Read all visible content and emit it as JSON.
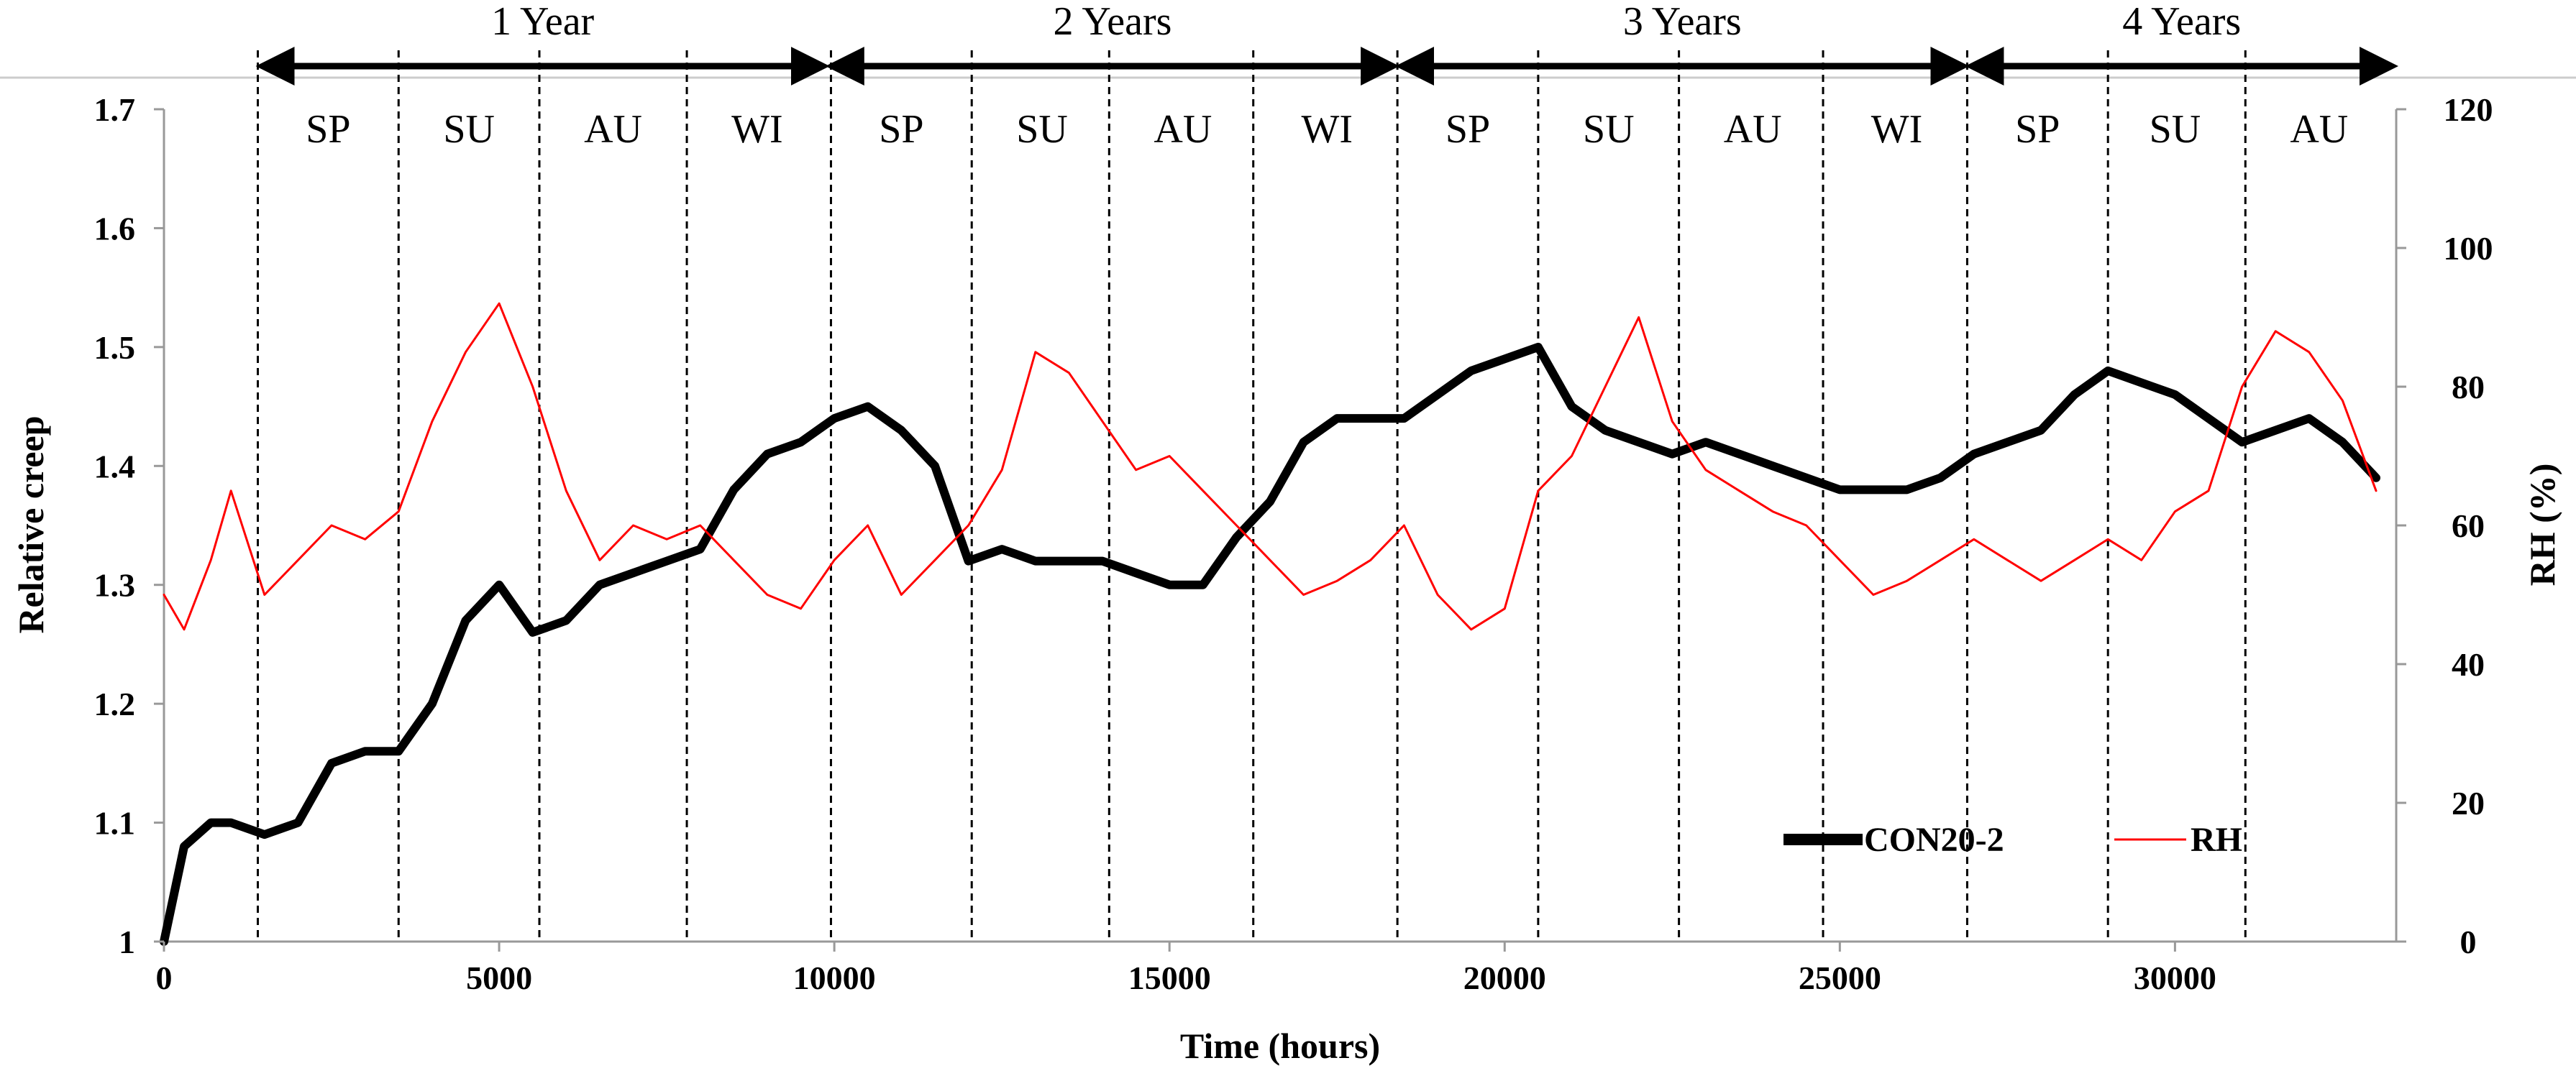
{
  "chart_data": {
    "type": "line",
    "title": "",
    "xlabel": "Time (hours)",
    "ylabel": "Relative creep",
    "y2label": "RH (%)",
    "xlim": [
      0,
      33300
    ],
    "ylim": [
      1,
      1.7
    ],
    "y2lim": [
      0,
      120
    ],
    "xticks": [
      0,
      5000,
      10000,
      15000,
      20000,
      25000,
      30000
    ],
    "yticks": [
      1,
      1.1,
      1.2,
      1.3,
      1.4,
      1.5,
      1.6,
      1.7
    ],
    "y2ticks": [
      0,
      20,
      40,
      60,
      80,
      100,
      120
    ],
    "xtick_labels": [
      "0",
      "5000",
      "10000",
      "15000",
      "20000",
      "25000",
      "30000"
    ],
    "ytick_labels": [
      "1",
      "1.1",
      "1.2",
      "1.3",
      "1.4",
      "1.5",
      "1.6",
      "1.7"
    ],
    "y2tick_labels": [
      "0",
      "20",
      "40",
      "60",
      "80",
      "100",
      "120"
    ],
    "grid": false,
    "legend_position": "bottom-right",
    "series": [
      {
        "name": "CON20-2",
        "axis": "left",
        "color": "#000000",
        "x": [
          0,
          300,
          700,
          1000,
          1500,
          2000,
          2500,
          3000,
          3500,
          4000,
          4500,
          5000,
          5500,
          6000,
          6500,
          7000,
          7500,
          8000,
          8500,
          9000,
          9500,
          10000,
          10500,
          11000,
          11500,
          12000,
          12500,
          13000,
          13500,
          14000,
          14500,
          15000,
          15500,
          16000,
          16500,
          17000,
          17500,
          18000,
          18500,
          19000,
          19500,
          20000,
          20500,
          21000,
          21500,
          22000,
          22500,
          23000,
          23500,
          24000,
          24500,
          25000,
          25500,
          26000,
          26500,
          27000,
          27500,
          28000,
          28500,
          29000,
          29500,
          30000,
          30500,
          31000,
          31500,
          32000,
          32500,
          33000
        ],
        "values": [
          1.0,
          1.08,
          1.1,
          1.1,
          1.09,
          1.1,
          1.15,
          1.16,
          1.16,
          1.2,
          1.27,
          1.3,
          1.26,
          1.27,
          1.3,
          1.31,
          1.32,
          1.33,
          1.38,
          1.41,
          1.42,
          1.44,
          1.45,
          1.43,
          1.4,
          1.32,
          1.33,
          1.32,
          1.32,
          1.32,
          1.31,
          1.3,
          1.3,
          1.34,
          1.37,
          1.42,
          1.44,
          1.44,
          1.44,
          1.46,
          1.48,
          1.49,
          1.5,
          1.45,
          1.43,
          1.42,
          1.41,
          1.42,
          1.41,
          1.4,
          1.39,
          1.38,
          1.38,
          1.38,
          1.39,
          1.41,
          1.42,
          1.43,
          1.46,
          1.48,
          1.47,
          1.46,
          1.44,
          1.42,
          1.43,
          1.44,
          1.42,
          1.39
        ]
      },
      {
        "name": "RH",
        "axis": "right",
        "color": "#ff0000",
        "x": [
          0,
          300,
          700,
          1000,
          1500,
          2000,
          2500,
          3000,
          3500,
          4000,
          4500,
          5000,
          5500,
          6000,
          6500,
          7000,
          7500,
          8000,
          8500,
          9000,
          9500,
          10000,
          10500,
          11000,
          11500,
          12000,
          12500,
          13000,
          13500,
          14000,
          14500,
          15000,
          15500,
          16000,
          16500,
          17000,
          17500,
          18000,
          18500,
          19000,
          19500,
          20000,
          20500,
          21000,
          21500,
          22000,
          22500,
          23000,
          23500,
          24000,
          24500,
          25000,
          25500,
          26000,
          26500,
          27000,
          27500,
          28000,
          28500,
          29000,
          29500,
          30000,
          30500,
          31000,
          31500,
          32000,
          32500,
          33000
        ],
        "values": [
          50,
          45,
          55,
          65,
          50,
          55,
          60,
          58,
          62,
          75,
          85,
          92,
          80,
          65,
          55,
          60,
          58,
          60,
          55,
          50,
          48,
          55,
          60,
          50,
          55,
          60,
          68,
          85,
          82,
          75,
          68,
          70,
          65,
          60,
          55,
          50,
          52,
          55,
          60,
          50,
          45,
          48,
          65,
          70,
          80,
          90,
          75,
          68,
          65,
          62,
          60,
          55,
          50,
          52,
          55,
          58,
          55,
          52,
          55,
          58,
          55,
          62,
          65,
          80,
          88,
          85,
          78,
          65
        ]
      }
    ],
    "annotations": {
      "years": [
        {
          "label": "1 Year",
          "start": 1400,
          "end": 9900
        },
        {
          "label": "2 Years",
          "start": 9900,
          "end": 18400
        },
        {
          "label": "3 Years",
          "start": 18400,
          "end": 26900
        },
        {
          "label": "4 Years",
          "start": 26900,
          "end": 33300
        }
      ],
      "season_boundaries": [
        1400,
        3500,
        5600,
        7800,
        9950,
        12050,
        14100,
        16250,
        18400,
        20500,
        22600,
        24750,
        26900,
        29000,
        31050
      ],
      "seasons": [
        {
          "label": "SP",
          "x": 2450
        },
        {
          "label": "SU",
          "x": 4550
        },
        {
          "label": "AU",
          "x": 6700
        },
        {
          "label": "WI",
          "x": 8850
        },
        {
          "label": "SP",
          "x": 11000
        },
        {
          "label": "SU",
          "x": 13100
        },
        {
          "label": "AU",
          "x": 15200
        },
        {
          "label": "WI",
          "x": 17350
        },
        {
          "label": "SP",
          "x": 19450
        },
        {
          "label": "SU",
          "x": 21550
        },
        {
          "label": "AU",
          "x": 23700
        },
        {
          "label": "WI",
          "x": 25850
        },
        {
          "label": "SP",
          "x": 27950
        },
        {
          "label": "SU",
          "x": 30000
        },
        {
          "label": "AU",
          "x": 32150
        }
      ]
    }
  }
}
